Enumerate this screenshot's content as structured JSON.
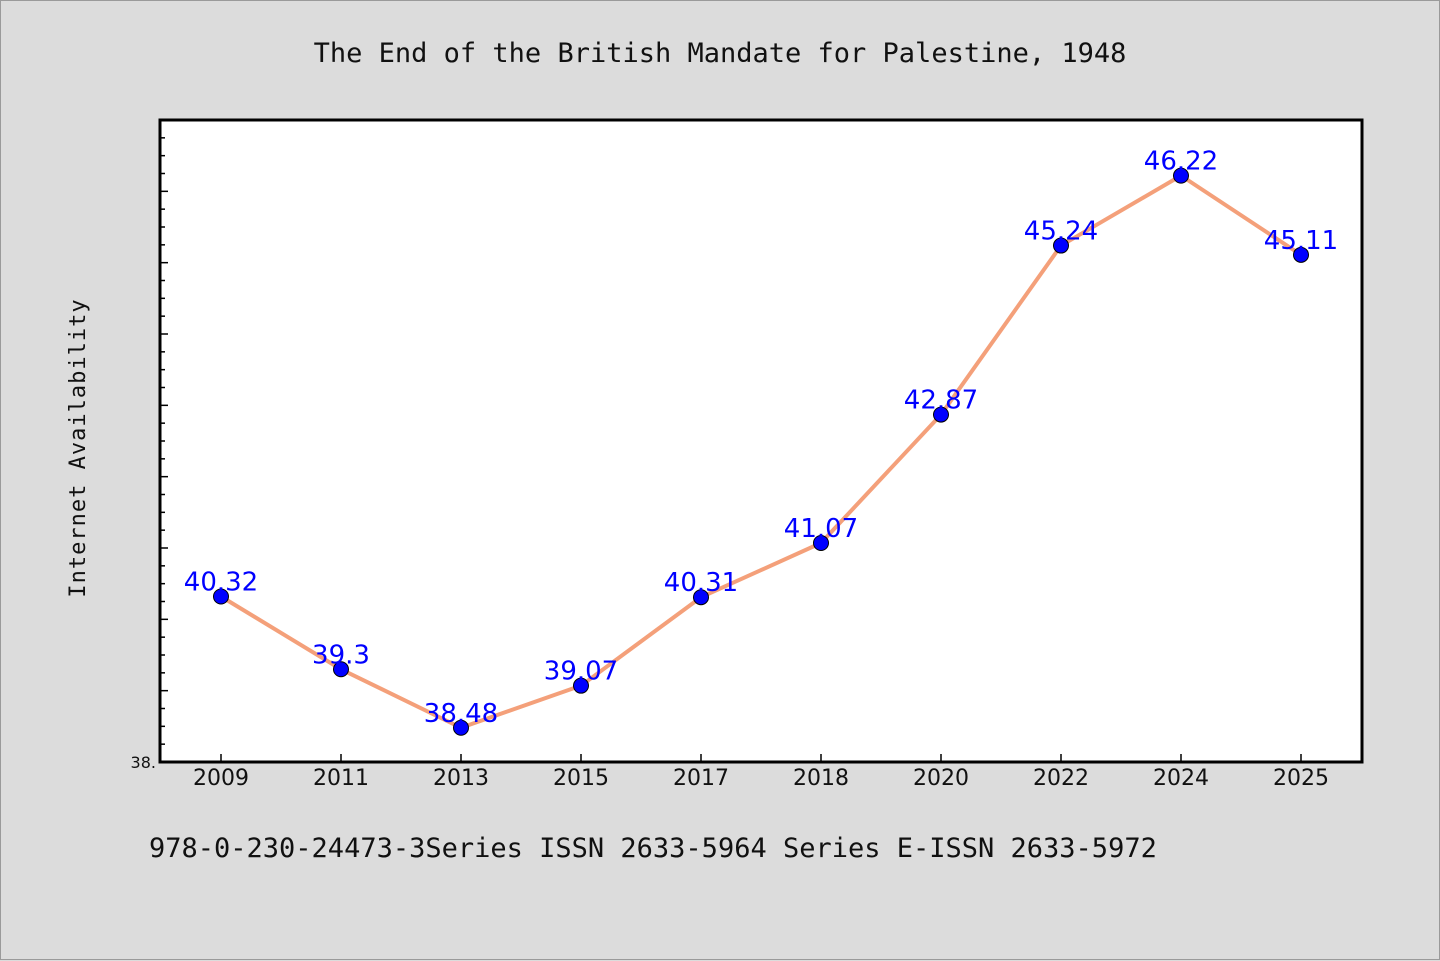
{
  "chart_data": {
    "type": "line",
    "title": "The End of the British Mandate for Palestine, 1948",
    "xlabel": "",
    "ylabel": "Internet Availability",
    "categories": [
      "2009",
      "2011",
      "2013",
      "2015",
      "2017",
      "2018",
      "2020",
      "2022",
      "2024",
      "2025"
    ],
    "series": [
      {
        "values": [
          40.32,
          39.3,
          38.48,
          39.07,
          40.31,
          41.07,
          42.87,
          45.24,
          46.22,
          45.11
        ],
        "data_labels": [
          "40.32",
          "39.3",
          "38.48",
          "39.07",
          "40.31",
          "41.07",
          "42.87",
          "45.24",
          "46.22",
          "45.11"
        ]
      }
    ],
    "ylim": [
      38.0,
      47.0
    ],
    "y_tick_labels": [
      "38."
    ],
    "grid": false,
    "legend": "none",
    "line_color": "#f4a07a",
    "marker_color": "#0000ff",
    "label_color": "#0000ff"
  },
  "footer": {
    "text": "978-0-230-24473-3Series ISSN 2633-5964 Series E-ISSN 2633-5972"
  }
}
